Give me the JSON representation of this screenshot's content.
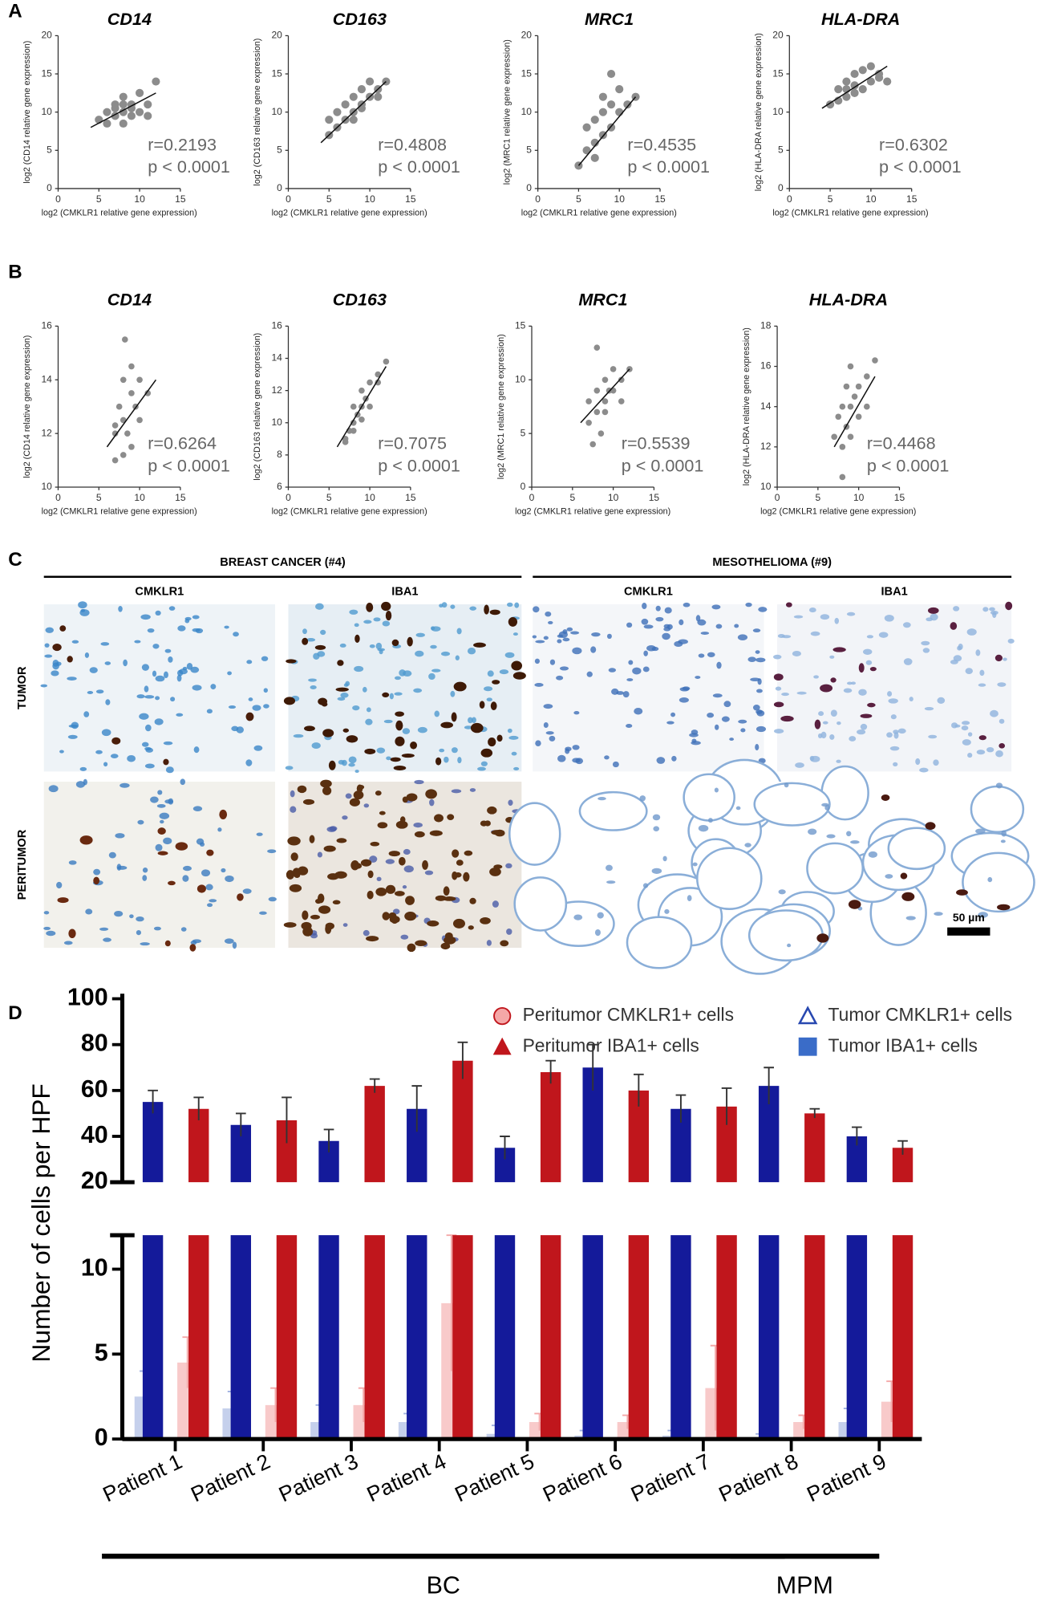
{
  "panel_labels": [
    "A",
    "B",
    "C",
    "D"
  ],
  "panel_c": {
    "groups": [
      {
        "label": "BREAST CANCER (#4)",
        "columns": [
          "CMKLR1",
          "IBA1"
        ]
      },
      {
        "label": "MESOTHELIOMA (#9)",
        "columns": [
          "CMKLR1",
          "IBA1"
        ]
      }
    ],
    "rows": [
      "TUMOR",
      "PERITUMOR"
    ],
    "scale_bar": "50 µm"
  },
  "chart_data": [
    {
      "type": "scatter",
      "title": "CD14",
      "xlabel": "log2 (CMKLR1 relative gene expression)",
      "ylabel": "log2 (CD14 relative gene expression)",
      "color": "#8c8c8c",
      "x": [
        5,
        6,
        6,
        7,
        7,
        8,
        8,
        8,
        9,
        9,
        10,
        10,
        11,
        11,
        12,
        7,
        9,
        8
      ],
      "y": [
        9,
        10,
        8.5,
        11,
        9.5,
        10,
        12,
        8.5,
        11,
        9.5,
        10,
        12.5,
        11,
        9.5,
        14,
        10.5,
        10.5,
        11
      ],
      "fit_line": {
        "x": [
          4,
          12
        ],
        "y": [
          8,
          12.5
        ]
      },
      "xlim": [
        0,
        15
      ],
      "xticks": [
        0,
        5,
        10,
        15
      ],
      "ylim": [
        0,
        20
      ],
      "yticks": [
        0,
        5,
        10,
        15,
        20
      ],
      "annotations": [
        "r=0.2193",
        "p < 0.0001"
      ]
    },
    {
      "type": "scatter",
      "title": "CD163",
      "xlabel": "log2 (CMKLR1 relative gene expression)",
      "ylabel": "log2 (CD163 relative gene expression)",
      "color": "#8c8c8c",
      "x": [
        5,
        5,
        6,
        6,
        7,
        7,
        8,
        8,
        9,
        9,
        10,
        10,
        11,
        11,
        12,
        8,
        9
      ],
      "y": [
        7,
        9,
        8,
        10,
        9,
        11,
        10,
        12,
        11,
        13,
        12,
        14,
        13,
        12,
        14,
        9,
        10.5
      ],
      "fit_line": {
        "x": [
          4,
          12
        ],
        "y": [
          6,
          14
        ]
      },
      "xlim": [
        0,
        15
      ],
      "xticks": [
        0,
        5,
        10,
        15
      ],
      "ylim": [
        0,
        20
      ],
      "yticks": [
        0,
        5,
        10,
        15,
        20
      ],
      "annotations": [
        "r=0.4808",
        "p < 0.0001"
      ]
    },
    {
      "type": "scatter",
      "title": "MRC1",
      "xlabel": "log2 (CMKLR1 relative gene expression)",
      "ylabel": "log2 (MRC1 relative gene expression)",
      "color": "#8c8c8c",
      "x": [
        5,
        6,
        6,
        7,
        7,
        8,
        8,
        8,
        9,
        9,
        10,
        10,
        11,
        7,
        12,
        9
      ],
      "y": [
        3,
        5,
        8,
        6,
        9,
        7,
        10,
        12,
        8,
        11,
        10,
        13,
        11,
        4,
        12,
        15
      ],
      "fit_line": {
        "x": [
          5,
          12
        ],
        "y": [
          3,
          12
        ]
      },
      "xlim": [
        0,
        15
      ],
      "xticks": [
        0,
        5,
        10,
        15
      ],
      "ylim": [
        0,
        20
      ],
      "yticks": [
        0,
        5,
        10,
        15,
        20
      ],
      "annotations": [
        "r=0.4535",
        "p < 0.0001"
      ]
    },
    {
      "type": "scatter",
      "title": "HLA-DRA",
      "xlabel": "log2 (CMKLR1 relative gene expression)",
      "ylabel": "log2 (HLA-DRA relative gene expression)",
      "color": "#8c8c8c",
      "x": [
        5,
        6,
        6,
        7,
        7,
        8,
        8,
        8,
        9,
        9,
        10,
        10,
        11,
        11,
        12,
        7
      ],
      "y": [
        11,
        11.5,
        13,
        12,
        14,
        12.5,
        15,
        13.5,
        13,
        15.5,
        14,
        16,
        14.5,
        15,
        14,
        13
      ],
      "fit_line": {
        "x": [
          4,
          12
        ],
        "y": [
          10.5,
          16
        ]
      },
      "xlim": [
        0,
        15
      ],
      "xticks": [
        0,
        5,
        10,
        15
      ],
      "ylim": [
        0,
        20
      ],
      "yticks": [
        0,
        5,
        10,
        15,
        20
      ],
      "annotations": [
        "r=0.6302",
        "p < 0.0001"
      ]
    },
    {
      "type": "scatter",
      "title": "CD14",
      "xlabel": "log2 (CMKLR1 relative gene expression)",
      "ylabel": "log2 (CD14 relative gene expression)",
      "color": "#8c8c8c",
      "x": [
        7,
        7,
        7.5,
        8,
        8,
        8.2,
        8.5,
        9,
        9,
        9.5,
        10,
        10,
        11,
        8,
        9,
        7
      ],
      "y": [
        12,
        11,
        13,
        12.5,
        14,
        15.5,
        12,
        13.5,
        11.5,
        13,
        14,
        12.5,
        13.5,
        11.2,
        14.5,
        12.3
      ],
      "fit_line": {
        "x": [
          6,
          12
        ],
        "y": [
          11.5,
          14
        ]
      },
      "xlim": [
        0,
        15
      ],
      "xticks": [
        0,
        5,
        10,
        15
      ],
      "ylim": [
        10,
        16
      ],
      "yticks": [
        10,
        12,
        14,
        16
      ],
      "annotations": [
        "r=0.6264",
        "p < 0.0001"
      ]
    },
    {
      "type": "scatter",
      "title": "CD163",
      "xlabel": "log2 (CMKLR1 relative gene expression)",
      "ylabel": "log2 (CD163 relative gene expression)",
      "color": "#8c8c8c",
      "x": [
        7,
        7.5,
        8,
        8,
        8.5,
        9,
        9,
        9.5,
        10,
        10,
        11,
        11,
        12,
        8,
        9,
        7
      ],
      "y": [
        9,
        9.5,
        10,
        11,
        10.5,
        11,
        12,
        11.5,
        12.5,
        11,
        13,
        12.5,
        13.8,
        9.5,
        10.2,
        8.8
      ],
      "fit_line": {
        "x": [
          6,
          12
        ],
        "y": [
          8.5,
          13.5
        ]
      },
      "xlim": [
        0,
        15
      ],
      "xticks": [
        0,
        5,
        10,
        15
      ],
      "ylim": [
        6,
        16
      ],
      "yticks": [
        6,
        8,
        10,
        12,
        14,
        16
      ],
      "annotations": [
        "r=0.7075",
        "p < 0.0001"
      ]
    },
    {
      "type": "scatter",
      "title": "MRC1",
      "xlabel": "log2 (CMKLR1 relative gene expression)",
      "ylabel": "log2 (MRC1 relative gene expression)",
      "color": "#8c8c8c",
      "x": [
        7,
        7,
        8,
        8,
        8,
        8.5,
        9,
        9,
        9.5,
        10,
        10,
        11,
        11,
        12,
        7.5,
        9
      ],
      "y": [
        6,
        8,
        7,
        9,
        13,
        5,
        8,
        10,
        9,
        9,
        11,
        10,
        8,
        11,
        4,
        7
      ],
      "fit_line": {
        "x": [
          6,
          12
        ],
        "y": [
          6,
          11
        ]
      },
      "xlim": [
        0,
        15
      ],
      "xticks": [
        0,
        5,
        10,
        15
      ],
      "ylim": [
        0,
        15
      ],
      "yticks": [
        0,
        5,
        10,
        15
      ],
      "annotations": [
        "r=0.5539",
        "p < 0.0001"
      ]
    },
    {
      "type": "scatter",
      "title": "HLA-DRA",
      "xlabel": "log2 (CMKLR1 relative gene expression)",
      "ylabel": "log2 (HLA-DRA relative gene expression)",
      "color": "#8c8c8c",
      "x": [
        7,
        7.5,
        8,
        8,
        8.5,
        8.5,
        9,
        9,
        9.5,
        10,
        10,
        11,
        11,
        12,
        8,
        9
      ],
      "y": [
        12.5,
        13.5,
        12,
        14,
        13,
        15,
        14,
        12.5,
        14.5,
        15,
        13.5,
        15.5,
        14,
        16.3,
        10.5,
        16
      ],
      "fit_line": {
        "x": [
          7,
          12
        ],
        "y": [
          12,
          15.5
        ]
      },
      "xlim": [
        0,
        15
      ],
      "xticks": [
        0,
        5,
        10,
        15
      ],
      "ylim": [
        10,
        18
      ],
      "yticks": [
        10,
        12,
        14,
        16,
        18
      ],
      "annotations": [
        "r=0.4468",
        "p < 0.0001"
      ]
    },
    {
      "type": "bar",
      "ylabel": "Number of cells per HPF",
      "categories": [
        "Patient 1",
        "Patient 2",
        "Patient 3",
        "Patient 4",
        "Patient 5",
        "Patient 6",
        "Patient 7",
        "Patient 8",
        "Patient 9"
      ],
      "groups": [
        {
          "label": "BC",
          "count": 7
        },
        {
          "label": "MPM",
          "count": 2
        }
      ],
      "ylim": [
        0,
        100
      ],
      "axis_break": [
        12,
        20
      ],
      "yticks": [
        0,
        5,
        10,
        20,
        40,
        60,
        80,
        100
      ],
      "series": [
        {
          "name": "Peritumor CMKLR1+ cells",
          "color": "#f4a7a7",
          "marker": "circle",
          "values": [
            4.5,
            2,
            2,
            8,
            1,
            1,
            3,
            1,
            2.2
          ],
          "errors": [
            1.5,
            1,
            1,
            4,
            0.5,
            0.4,
            2.5,
            0.4,
            1.2
          ]
        },
        {
          "name": "Peritumor IBA1+ cells",
          "color": "#c0161c",
          "marker": "triangle",
          "values": [
            52,
            47,
            62,
            73,
            68,
            60,
            53,
            50,
            35
          ],
          "errors": [
            5,
            10,
            3,
            8,
            5,
            7,
            8,
            2,
            3
          ]
        },
        {
          "name": "Tumor CMKLR1+ cells",
          "color": "#9fb0e0",
          "marker": "triangle-open",
          "values": [
            2.5,
            1.8,
            1,
            1,
            0.3,
            0.2,
            0.2,
            0.1,
            1
          ],
          "errors": [
            1.5,
            1,
            1,
            0.5,
            0.5,
            0.3,
            0.3,
            0.2,
            0.8
          ]
        },
        {
          "name": "Tumor IBA1+ cells",
          "color": "#141a9a",
          "marker": "square",
          "values": [
            55,
            45,
            38,
            52,
            35,
            70,
            52,
            62,
            40
          ],
          "errors": [
            5,
            5,
            5,
            10,
            5,
            10,
            6,
            8,
            4
          ]
        }
      ]
    }
  ]
}
